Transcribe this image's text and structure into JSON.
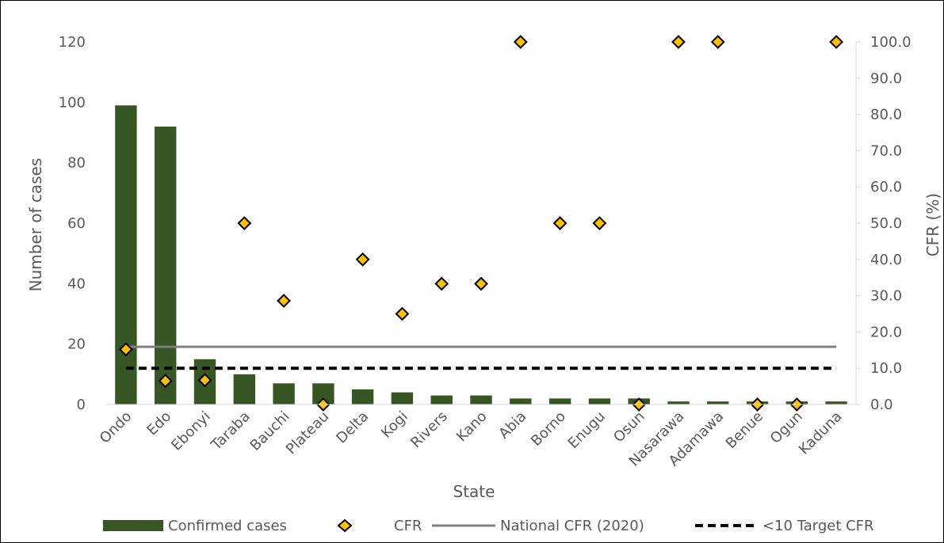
{
  "colors": {
    "bar": "#375623",
    "marker_fill": "#FFC000",
    "marker_stroke": "#000000",
    "national_line": "#808080",
    "target_line": "#000000",
    "axis_text": "#595959"
  },
  "chart_data": {
    "type": "bar",
    "xlabel": "State",
    "ylabel": "Number of cases",
    "y2label": "CFR (%)",
    "categories": [
      "Ondo",
      "Edo",
      "Ebonyi",
      "Taraba",
      "Bauchi",
      "Plateau",
      "Delta",
      "Kogi",
      "Rivers",
      "Kano",
      "Abia",
      "Borno",
      "Enugu",
      "Osun",
      "Nasarawa",
      "Adamawa",
      "Benue",
      "Ogun",
      "Kaduna"
    ],
    "ylim": [
      0,
      120
    ],
    "y2lim": [
      0,
      100
    ],
    "y_ticks": [
      "0",
      "20",
      "40",
      "60",
      "80",
      "100",
      "120"
    ],
    "y2_ticks": [
      "0.0",
      "10.0",
      "20.0",
      "30.0",
      "40.0",
      "50.0",
      "60.0",
      "70.0",
      "80.0",
      "90.0",
      "100.0"
    ],
    "grid": false,
    "legend_position": "bottom",
    "series": [
      {
        "name": "Confirmed cases",
        "type": "bar",
        "axis": "left",
        "values": [
          99,
          92,
          15,
          10,
          7,
          7,
          5,
          4,
          3,
          3,
          2,
          2,
          2,
          2,
          1,
          1,
          1,
          1,
          1
        ]
      },
      {
        "name": "CFR",
        "type": "scatter",
        "marker": "diamond",
        "axis": "right",
        "values": [
          15.2,
          6.5,
          6.7,
          50.0,
          28.6,
          0.0,
          40.0,
          25.0,
          33.3,
          33.3,
          100.0,
          50.0,
          50.0,
          0.0,
          100.0,
          100.0,
          0.0,
          0.0,
          100.0
        ]
      },
      {
        "name": "National CFR (2020)",
        "type": "line",
        "axis": "right",
        "value": 15.9
      },
      {
        "name": "<10 Target CFR",
        "type": "line",
        "style": "dashed",
        "axis": "right",
        "value": 10.0
      }
    ]
  }
}
